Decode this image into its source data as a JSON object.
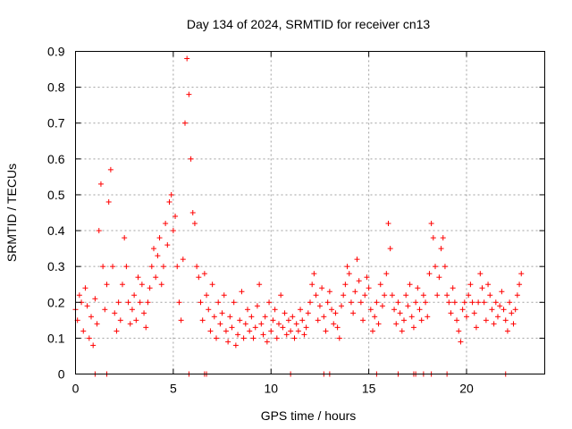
{
  "chart_data": {
    "type": "scatter",
    "title": "Day 134 of 2024, SRMTID for receiver cn13",
    "xlabel": "GPS time / hours",
    "ylabel": "SRMTID / TECUs",
    "xlim": [
      0,
      24
    ],
    "ylim": [
      0,
      0.9
    ],
    "x_ticks": [
      0,
      5,
      10,
      15,
      20
    ],
    "x_tick_labels": [
      "0",
      "5",
      "10",
      "15",
      "20"
    ],
    "y_ticks": [
      0,
      0.1,
      0.2,
      0.3,
      0.4,
      0.5,
      0.6,
      0.7,
      0.8,
      0.9
    ],
    "y_tick_labels": [
      "0",
      "0.1",
      "0.2",
      "0.3",
      "0.4",
      "0.5",
      "0.6",
      "0.7",
      "0.8",
      "0.9"
    ],
    "grid": true,
    "marker": "+",
    "color": "#ff0000",
    "series": [
      {
        "name": "SRMTID",
        "x": [
          0.0,
          0.1,
          0.2,
          0.3,
          0.4,
          0.5,
          0.6,
          0.7,
          0.8,
          0.9,
          1.0,
          1.1,
          1.2,
          1.3,
          1.4,
          1.5,
          1.6,
          1.7,
          1.8,
          1.9,
          2.0,
          2.1,
          2.2,
          2.3,
          2.4,
          2.5,
          2.6,
          2.7,
          2.8,
          2.9,
          3.0,
          3.1,
          3.2,
          3.3,
          3.4,
          3.5,
          3.6,
          3.7,
          3.8,
          3.9,
          4.0,
          4.1,
          4.2,
          4.3,
          4.4,
          4.5,
          4.6,
          4.7,
          4.8,
          4.9,
          5.0,
          5.1,
          5.2,
          5.3,
          5.4,
          5.5,
          5.6,
          5.7,
          5.8,
          5.9,
          6.0,
          6.1,
          6.2,
          6.3,
          6.4,
          6.5,
          6.6,
          6.7,
          6.8,
          6.9,
          7.0,
          7.1,
          7.2,
          7.3,
          7.4,
          7.5,
          7.6,
          7.7,
          7.8,
          7.9,
          8.0,
          8.1,
          8.2,
          8.3,
          8.4,
          8.5,
          8.6,
          8.7,
          8.8,
          8.9,
          9.0,
          9.1,
          9.2,
          9.3,
          9.4,
          9.5,
          9.6,
          9.7,
          9.8,
          9.9,
          10.0,
          10.1,
          10.2,
          10.3,
          10.4,
          10.5,
          10.6,
          10.7,
          10.8,
          10.9,
          11.0,
          11.1,
          11.2,
          11.3,
          11.4,
          11.5,
          11.6,
          11.7,
          11.8,
          11.9,
          12.0,
          12.1,
          12.2,
          12.3,
          12.4,
          12.5,
          12.6,
          12.7,
          12.8,
          12.9,
          13.0,
          13.1,
          13.2,
          13.3,
          13.4,
          13.5,
          13.6,
          13.7,
          13.8,
          13.9,
          14.0,
          14.1,
          14.2,
          14.3,
          14.4,
          14.5,
          14.6,
          14.7,
          14.8,
          14.9,
          15.0,
          15.1,
          15.2,
          15.3,
          15.4,
          15.5,
          15.6,
          15.7,
          15.8,
          15.9,
          16.0,
          16.1,
          16.2,
          16.3,
          16.4,
          16.5,
          16.6,
          16.7,
          16.8,
          16.9,
          17.0,
          17.1,
          17.2,
          17.3,
          17.4,
          17.5,
          17.6,
          17.7,
          17.8,
          17.9,
          18.0,
          18.1,
          18.2,
          18.3,
          18.4,
          18.5,
          18.6,
          18.7,
          18.8,
          18.9,
          19.0,
          19.1,
          19.2,
          19.3,
          19.4,
          19.5,
          19.6,
          19.7,
          19.8,
          19.9,
          20.0,
          20.1,
          20.2,
          20.3,
          20.4,
          20.5,
          20.6,
          20.7,
          20.8,
          20.9,
          21.0,
          21.1,
          21.2,
          21.3,
          21.4,
          21.5,
          21.6,
          21.7,
          21.8,
          21.9,
          22.0,
          22.1,
          22.2,
          22.3,
          22.4,
          22.5,
          22.6,
          22.7,
          22.8
        ],
        "y": [
          0.18,
          0.15,
          0.22,
          0.2,
          0.12,
          0.24,
          0.19,
          0.1,
          0.16,
          0.08,
          0.21,
          0.14,
          0.4,
          0.53,
          0.3,
          0.18,
          0.25,
          0.48,
          0.57,
          0.3,
          0.17,
          0.12,
          0.2,
          0.15,
          0.25,
          0.38,
          0.3,
          0.2,
          0.14,
          0.18,
          0.22,
          0.15,
          0.27,
          0.2,
          0.25,
          0.17,
          0.13,
          0.2,
          0.24,
          0.3,
          0.35,
          0.27,
          0.33,
          0.38,
          0.25,
          0.3,
          0.42,
          0.36,
          0.48,
          0.5,
          0.4,
          0.44,
          0.3,
          0.2,
          0.15,
          0.32,
          0.7,
          0.88,
          0.78,
          0.6,
          0.45,
          0.42,
          0.3,
          0.27,
          0.2,
          0.15,
          0.28,
          0.22,
          0.18,
          0.12,
          0.25,
          0.16,
          0.1,
          0.2,
          0.14,
          0.17,
          0.22,
          0.12,
          0.09,
          0.16,
          0.13,
          0.2,
          0.08,
          0.11,
          0.15,
          0.23,
          0.1,
          0.14,
          0.18,
          0.12,
          0.16,
          0.1,
          0.13,
          0.19,
          0.25,
          0.14,
          0.11,
          0.16,
          0.09,
          0.2,
          0.12,
          0.15,
          0.18,
          0.1,
          0.14,
          0.22,
          0.13,
          0.17,
          0.11,
          0.15,
          0.12,
          0.16,
          0.1,
          0.14,
          0.12,
          0.18,
          0.15,
          0.11,
          0.13,
          0.17,
          0.2,
          0.25,
          0.28,
          0.22,
          0.15,
          0.19,
          0.24,
          0.16,
          0.12,
          0.2,
          0.23,
          0.18,
          0.14,
          0.17,
          0.13,
          0.1,
          0.19,
          0.22,
          0.25,
          0.3,
          0.28,
          0.2,
          0.17,
          0.23,
          0.32,
          0.26,
          0.2,
          0.15,
          0.22,
          0.27,
          0.24,
          0.18,
          0.12,
          0.16,
          0.2,
          0.14,
          0.25,
          0.19,
          0.22,
          0.28,
          0.42,
          0.35,
          0.22,
          0.18,
          0.14,
          0.2,
          0.17,
          0.12,
          0.15,
          0.22,
          0.19,
          0.25,
          0.16,
          0.13,
          0.2,
          0.24,
          0.18,
          0.15,
          0.22,
          0.2,
          0.16,
          0.28,
          0.42,
          0.38,
          0.3,
          0.22,
          0.27,
          0.35,
          0.38,
          0.3,
          0.22,
          0.2,
          0.17,
          0.24,
          0.2,
          0.15,
          0.12,
          0.09,
          0.18,
          0.2,
          0.16,
          0.22,
          0.25,
          0.2,
          0.17,
          0.13,
          0.2,
          0.28,
          0.24,
          0.2,
          0.15,
          0.25,
          0.22,
          0.18,
          0.14,
          0.2,
          0.16,
          0.19,
          0.23,
          0.18,
          0.15,
          0.12,
          0.2,
          0.17,
          0.14,
          0.18,
          0.22,
          0.25,
          0.28
        ]
      }
    ],
    "zero_points_x": [
      1.0,
      1.6,
      5.8,
      6.6,
      6.7,
      11.0,
      12.7,
      13.0,
      15.4,
      16.5,
      17.3,
      17.4,
      17.8,
      18.2,
      19.0,
      22.0
    ]
  }
}
